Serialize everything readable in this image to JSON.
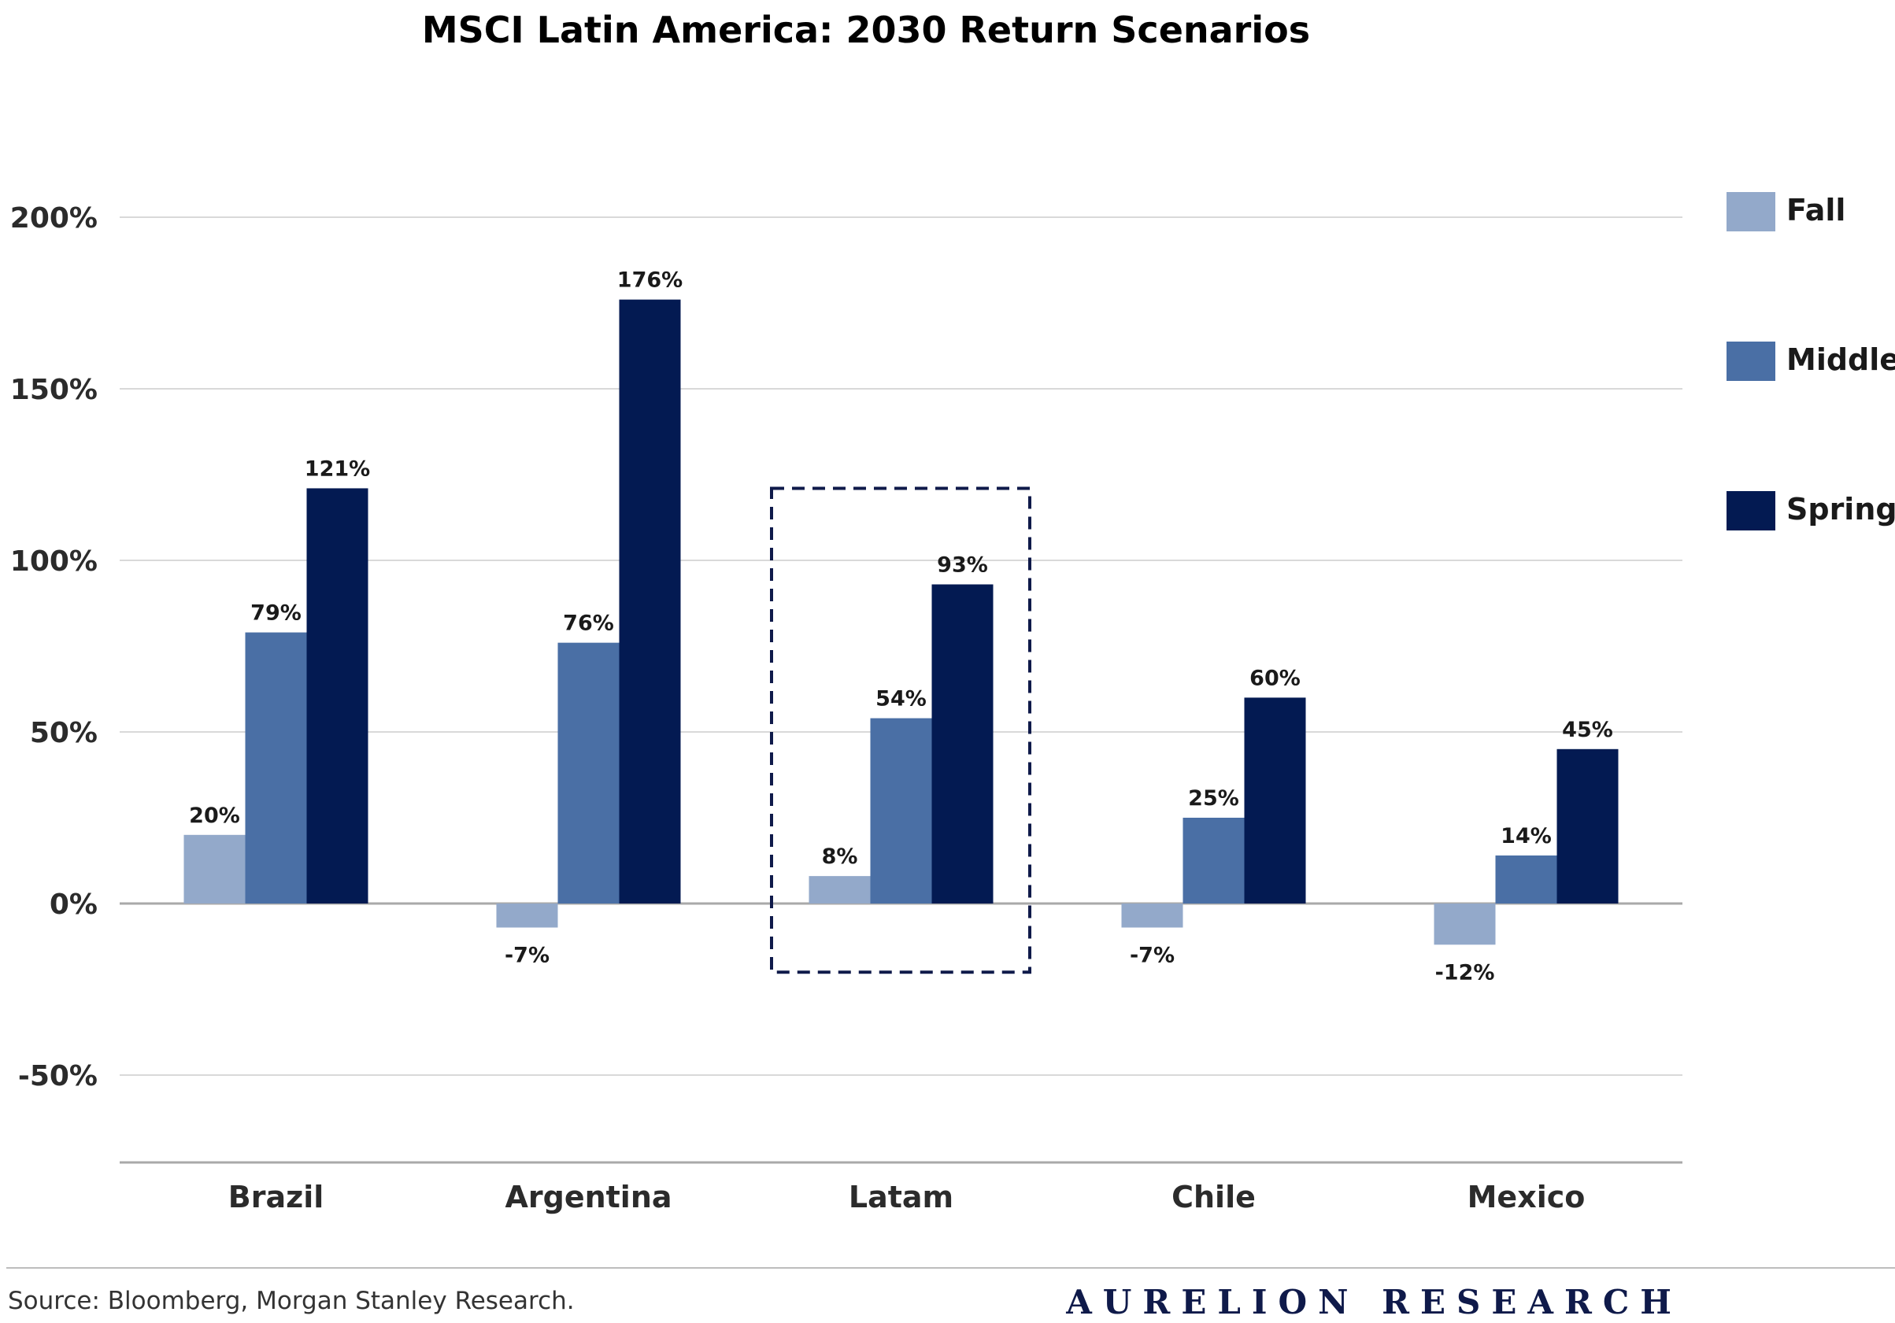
{
  "chart_data": {
    "type": "bar",
    "title": "MSCI Latin America: 2030 Return Scenarios",
    "categories": [
      "Brazil",
      "Argentina",
      "Latam",
      "Chile",
      "Mexico"
    ],
    "series": [
      {
        "name": "Fall",
        "values": [
          20,
          -7,
          8,
          -7,
          -12
        ],
        "labels": [
          "20%",
          "-7%",
          "8%",
          "-7%",
          "-12%"
        ]
      },
      {
        "name": "Middle",
        "values": [
          79,
          76,
          54,
          25,
          14
        ],
        "labels": [
          "79%",
          "76%",
          "54%",
          "25%",
          "14%"
        ]
      },
      {
        "name": "Spring",
        "values": [
          121,
          176,
          93,
          60,
          45
        ],
        "labels": [
          "121%",
          "176%",
          "93%",
          "60%",
          "45%"
        ]
      }
    ],
    "yticks": [
      200,
      150,
      100,
      50,
      0,
      -50
    ],
    "ytick_labels": [
      "200%",
      "150%",
      "100%",
      "50%",
      "0%",
      "-50%"
    ],
    "ylim": [
      -75,
      200
    ],
    "grid": true,
    "legend": "right",
    "highlight_category": "Latam",
    "colors": {
      "Fall": "#93a9ca",
      "Middle": "#4a6fa5",
      "Spring": "#031a52"
    }
  },
  "footer": {
    "source": "Source: Bloomberg, Morgan Stanley Research.",
    "brand": "AURELION RESEARCH"
  }
}
